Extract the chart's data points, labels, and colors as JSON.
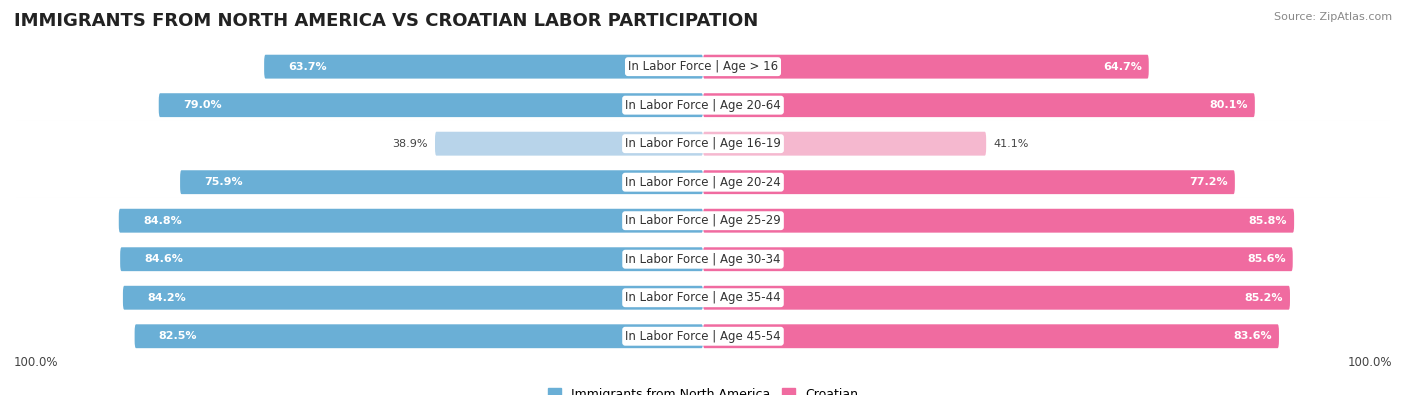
{
  "title": "IMMIGRANTS FROM NORTH AMERICA VS CROATIAN LABOR PARTICIPATION",
  "source": "Source: ZipAtlas.com",
  "categories": [
    "In Labor Force | Age > 16",
    "In Labor Force | Age 20-64",
    "In Labor Force | Age 16-19",
    "In Labor Force | Age 20-24",
    "In Labor Force | Age 25-29",
    "In Labor Force | Age 30-34",
    "In Labor Force | Age 35-44",
    "In Labor Force | Age 45-54"
  ],
  "left_values": [
    63.7,
    79.0,
    38.9,
    75.9,
    84.8,
    84.6,
    84.2,
    82.5
  ],
  "right_values": [
    64.7,
    80.1,
    41.1,
    77.2,
    85.8,
    85.6,
    85.2,
    83.6
  ],
  "left_color": "#6aafd6",
  "left_color_light": "#b8d4ea",
  "right_color": "#f06ba0",
  "right_color_light": "#f5b8cf",
  "row_bg_color": "#e8e8ee",
  "max_value": 100.0,
  "left_label": "Immigrants from North America",
  "right_label": "Croatian",
  "left_axis_label": "100.0%",
  "right_axis_label": "100.0%",
  "title_fontsize": 13,
  "label_fontsize": 8.5,
  "value_fontsize": 8,
  "figsize": [
    14.06,
    3.95
  ]
}
